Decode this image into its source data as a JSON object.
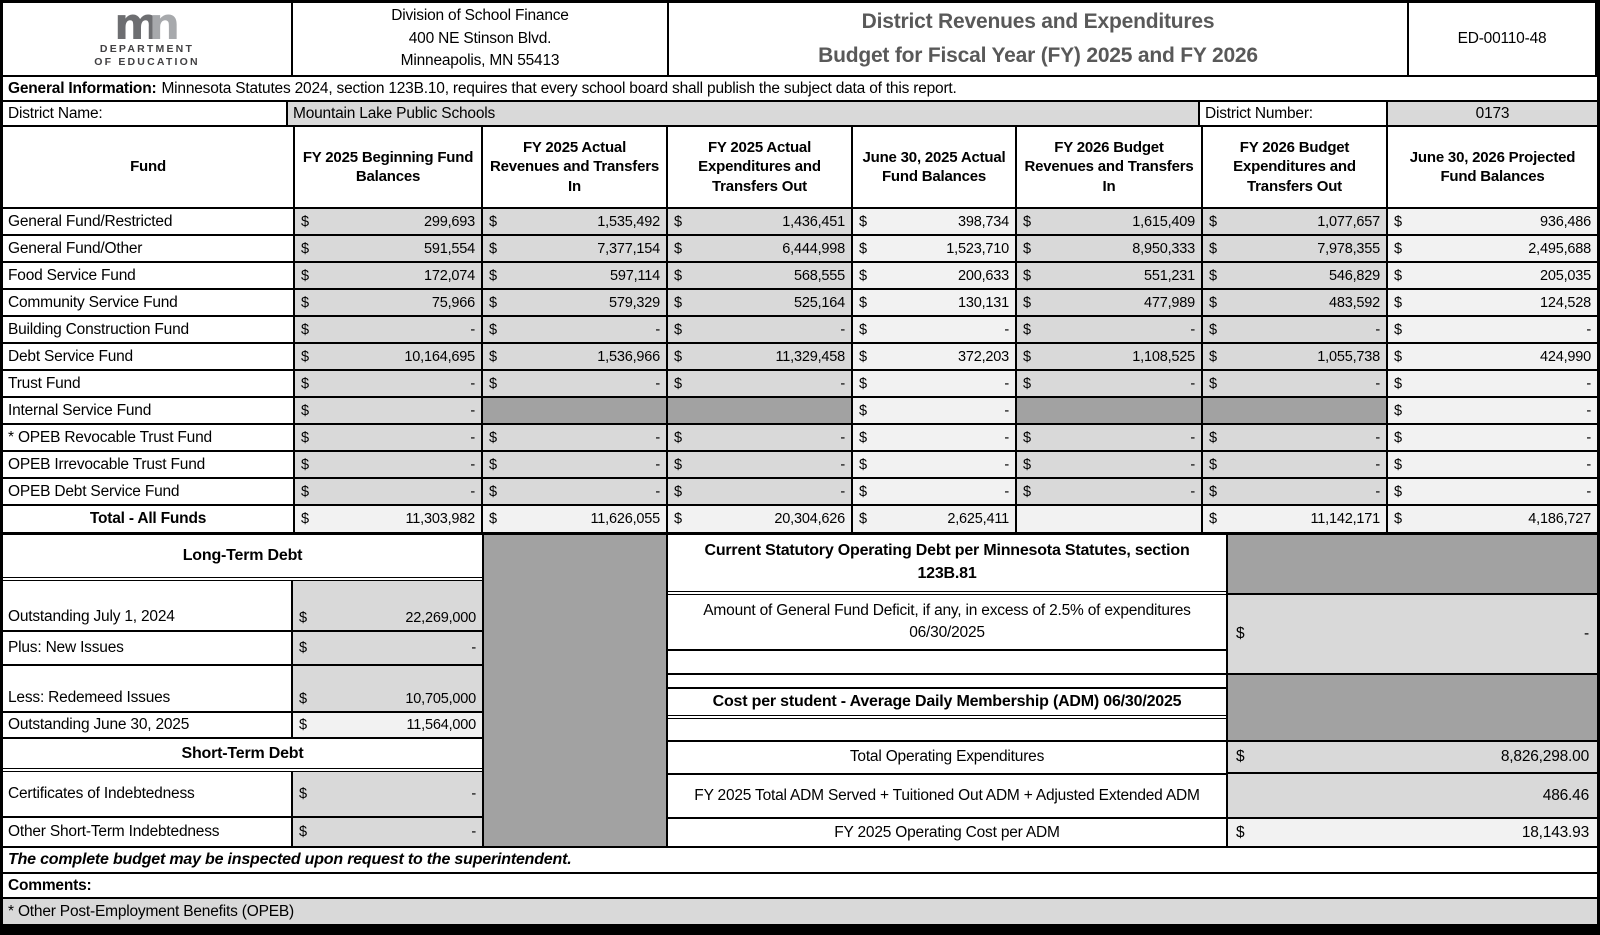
{
  "header": {
    "logo_text": "mn",
    "dept_line1": "DEPARTMENT",
    "dept_line2": "OF EDUCATION",
    "address_line1": "Division of School Finance",
    "address_line2": "400 NE Stinson Blvd.",
    "address_line3": "Minneapolis, MN 55413",
    "title_line1": "District Revenues and Expenditures",
    "title_line2": "Budget for Fiscal Year (FY) 2025 and FY 2026",
    "form_number": "ED-00110-48"
  },
  "general_information": {
    "label": "General Information:",
    "text": "Minnesota Statutes 2024, section 123B.10, requires that every school board shall publish the subject data of this report."
  },
  "district": {
    "name_label": "District Name:",
    "name": "Mountain Lake Public Schools",
    "number_label": "District Number:",
    "number": "0173"
  },
  "currency_symbol": "$",
  "funds_table": {
    "columns": [
      "Fund",
      "FY 2025 Beginning Fund Balances",
      "FY 2025 Actual Revenues and Transfers In",
      "FY 2025 Actual Expenditures and Transfers Out",
      "June 30, 2025 Actual Fund Balances",
      "FY 2026 Budget Revenues and Transfers In",
      "FY 2026 Budget Expenditures and Transfers Out",
      "June 30, 2026 Projected Fund Balances"
    ],
    "rows": [
      {
        "fund": "General Fund/Restricted",
        "values": [
          "299,693",
          "1,535,492",
          "1,436,451",
          "398,734",
          "1,615,409",
          "1,077,657",
          "936,486"
        ]
      },
      {
        "fund": "General Fund/Other",
        "values": [
          "591,554",
          "7,377,154",
          "6,444,998",
          "1,523,710",
          "8,950,333",
          "7,978,355",
          "2,495,688"
        ]
      },
      {
        "fund": "Food Service Fund",
        "values": [
          "172,074",
          "597,114",
          "568,555",
          "200,633",
          "551,231",
          "546,829",
          "205,035"
        ]
      },
      {
        "fund": "Community Service Fund",
        "values": [
          "75,966",
          "579,329",
          "525,164",
          "130,131",
          "477,989",
          "483,592",
          "124,528"
        ]
      },
      {
        "fund": "Building Construction Fund",
        "values": [
          "-",
          "-",
          "-",
          "-",
          "-",
          "-",
          "-"
        ]
      },
      {
        "fund": "Debt Service Fund",
        "values": [
          "10,164,695",
          "1,536,966",
          "11,329,458",
          "372,203",
          "1,108,525",
          "1,055,738",
          "424,990"
        ]
      },
      {
        "fund": "Trust Fund",
        "values": [
          "-",
          "-",
          "-",
          "-",
          "-",
          "-",
          "-"
        ]
      },
      {
        "fund": "Internal Service Fund",
        "values": [
          "-",
          null,
          null,
          "-",
          null,
          null,
          "-"
        ]
      },
      {
        "fund": "* OPEB Revocable Trust Fund",
        "values": [
          "-",
          "-",
          "-",
          "-",
          "-",
          "-",
          "-"
        ]
      },
      {
        "fund": "OPEB Irrevocable Trust Fund",
        "values": [
          "-",
          "-",
          "-",
          "-",
          "-",
          "-",
          "-"
        ]
      },
      {
        "fund": "OPEB Debt Service Fund",
        "values": [
          "-",
          "-",
          "-",
          "-",
          "-",
          "-",
          "-"
        ]
      }
    ],
    "total_row": {
      "fund": "Total - All Funds",
      "values": [
        "11,303,982",
        "11,626,055",
        "20,304,626",
        "2,625,411",
        "",
        "11,142,171",
        "4,186,727"
      ]
    }
  },
  "long_term_debt": {
    "title": "Long-Term Debt",
    "rows": [
      {
        "label": "Outstanding July 1, 2024",
        "value": "22,269,000"
      },
      {
        "label": "Plus: New Issues",
        "value": "-"
      },
      {
        "label": "Less: Redemeed Issues",
        "value": "10,705,000"
      },
      {
        "label": "Outstanding June 30, 2025",
        "value": "11,564,000"
      }
    ]
  },
  "short_term_debt": {
    "title": "Short-Term Debt",
    "rows": [
      {
        "label": "Certificates of Indebtedness",
        "value": "-"
      },
      {
        "label": "Other Short-Term Indebtedness",
        "value": "-"
      }
    ]
  },
  "statutory_debt": {
    "title": "Current Statutory Operating Debt per Minnesota Statutes, section 123B.81",
    "deficit_label": "Amount of General Fund Deficit, if any, in excess of 2.5% of expenditures 06/30/2025",
    "deficit_value": "-"
  },
  "cost_per_student": {
    "title": "Cost per student - Average Daily Membership (ADM) 06/30/2025",
    "rows": [
      {
        "label": "Total Operating Expenditures",
        "value": "8,826,298.00",
        "dollar": true
      },
      {
        "label": "FY 2025 Total ADM Served + Tuitioned Out ADM + Adjusted Extended ADM",
        "value": "486.46",
        "dollar": false
      },
      {
        "label": "FY 2025 Operating Cost per ADM",
        "value": "18,143.93",
        "dollar": true
      }
    ]
  },
  "footer": {
    "inspection_note": "The complete budget may be inspected upon request to the superintendent.",
    "comments_label": "Comments:",
    "opeb_note": "* Other Post-Employment Benefits (OPEB)"
  },
  "colors": {
    "cell_gray": "#d9d9d9",
    "cell_light": "#f2f2f2",
    "cell_dark": "#a2a2a2",
    "title_gray": "#595959"
  }
}
